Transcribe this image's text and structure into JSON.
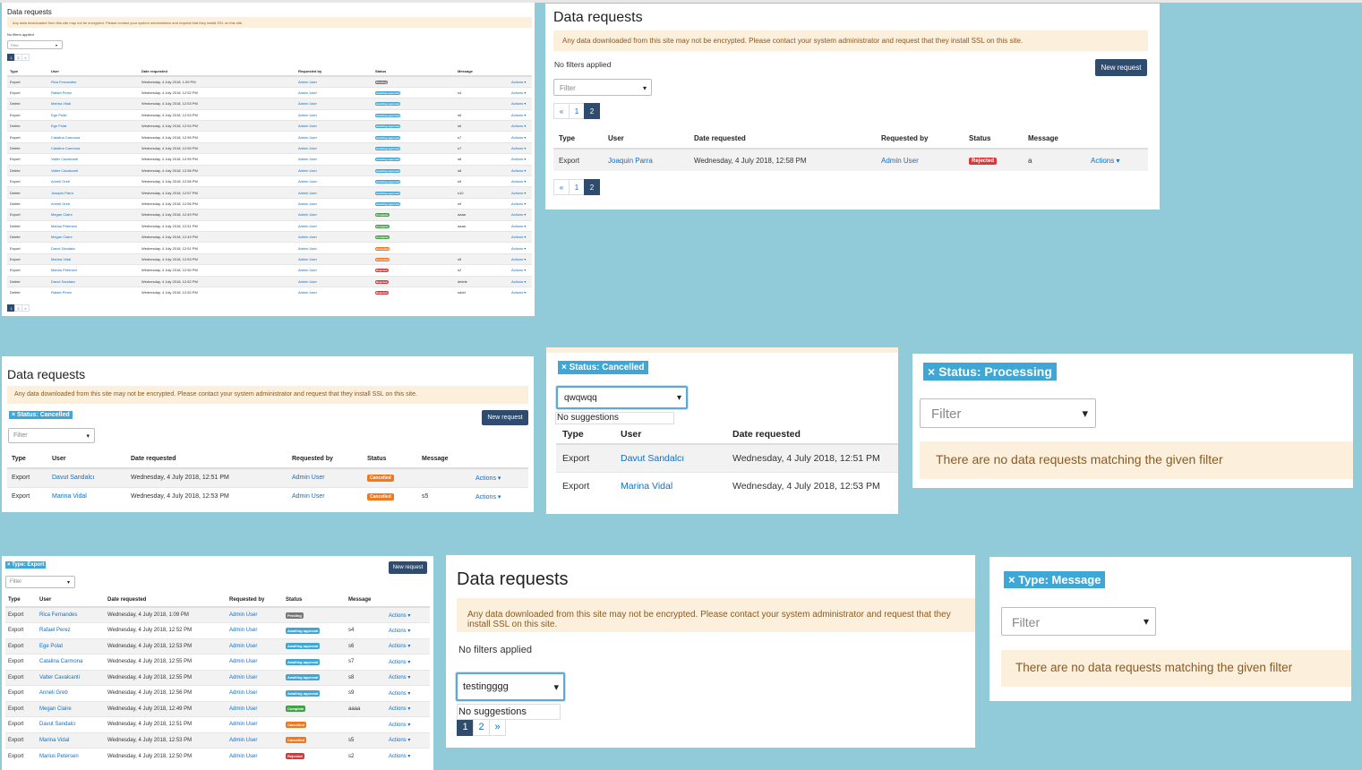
{
  "title": "Data requests",
  "warning": "Any data downloaded from this site may not be encrypted. Please contact your system administrator and request that they install SSL on this site.",
  "no_filters": "No filters applied",
  "new_request": "New request",
  "filter_placeholder": "Filter",
  "arrow": "▾",
  "actions": "Actions ▾",
  "no_suggestions": "No suggestions",
  "no_match": "There are no data requests matching the given filter",
  "headers": {
    "type": "Type",
    "user": "User",
    "date": "Date requested",
    "by": "Requested by",
    "status": "Status",
    "message": "Message"
  },
  "pager": {
    "prev": "«",
    "next": "»",
    "p1": "1",
    "p2": "2"
  },
  "chips": {
    "cancelled": "× Status: Cancelled",
    "processing": "× Status: Processing",
    "export": "× Type: Export",
    "message": "× Type: Message"
  },
  "inputs": {
    "qwqwqq": "qwqwqq",
    "testingggg": "testingggg"
  },
  "colors": {
    "primary": "#2f4b6e",
    "awaiting": "#3fa7d6",
    "complete": "#43a047",
    "cancelled": "#f0781f",
    "rejected": "#d9383a",
    "pending": "#777777",
    "warning_bg": "#fcefdc",
    "backdrop": "#91cbda"
  },
  "rows_full": [
    {
      "type": "Export",
      "user": "Rica Fernandes",
      "date": "Wednesday, 4 July 2018, 1:09 PM",
      "by": "Admin User",
      "status": "Pending",
      "cls": "b-pending",
      "msg": ""
    },
    {
      "type": "Export",
      "user": "Rafael Perez",
      "date": "Wednesday, 4 July 2018, 12:52 PM",
      "by": "Admin User",
      "status": "Awaiting approval",
      "cls": "b-awaiting",
      "msg": "s4"
    },
    {
      "type": "Delete",
      "user": "Marina Vidal",
      "date": "Wednesday, 4 July 2018, 12:53 PM",
      "by": "Admin User",
      "status": "Awaiting approval",
      "cls": "b-awaiting",
      "msg": ""
    },
    {
      "type": "Export",
      "user": "Ege Polat",
      "date": "Wednesday, 4 July 2018, 12:53 PM",
      "by": "Admin User",
      "status": "Awaiting approval",
      "cls": "b-awaiting",
      "msg": "s6"
    },
    {
      "type": "Delete",
      "user": "Ege Polat",
      "date": "Wednesday, 4 July 2018, 12:54 PM",
      "by": "Admin User",
      "status": "Awaiting approval",
      "cls": "b-awaiting",
      "msg": "s6"
    },
    {
      "type": "Export",
      "user": "Catalina Carmona",
      "date": "Wednesday, 4 July 2018, 12:55 PM",
      "by": "Admin User",
      "status": "Awaiting approval",
      "cls": "b-awaiting",
      "msg": "s7"
    },
    {
      "type": "Delete",
      "user": "Catalina Carmona",
      "date": "Wednesday, 4 July 2018, 12:55 PM",
      "by": "Admin User",
      "status": "Awaiting approval",
      "cls": "b-awaiting",
      "msg": "s7"
    },
    {
      "type": "Export",
      "user": "Valter Cavalcanti",
      "date": "Wednesday, 4 July 2018, 12:55 PM",
      "by": "Admin User",
      "status": "Awaiting approval",
      "cls": "b-awaiting",
      "msg": "s8"
    },
    {
      "type": "Delete",
      "user": "Valter Cavalcanti",
      "date": "Wednesday, 4 July 2018, 12:56 PM",
      "by": "Admin User",
      "status": "Awaiting approval",
      "cls": "b-awaiting",
      "msg": "s8"
    },
    {
      "type": "Export",
      "user": "Anneli Greb",
      "date": "Wednesday, 4 July 2018, 12:56 PM",
      "by": "Admin User",
      "status": "Awaiting approval",
      "cls": "b-awaiting",
      "msg": "s9"
    },
    {
      "type": "Delete",
      "user": "Joaquin Parra",
      "date": "Wednesday, 4 July 2018, 12:57 PM",
      "by": "Admin User",
      "status": "Awaiting approval",
      "cls": "b-awaiting",
      "msg": "s10"
    },
    {
      "type": "Delete",
      "user": "Anneli Greb",
      "date": "Wednesday, 4 July 2018, 12:56 PM",
      "by": "Admin User",
      "status": "Awaiting approval",
      "cls": "b-awaiting",
      "msg": "s9"
    },
    {
      "type": "Export",
      "user": "Megan Claire",
      "date": "Wednesday, 4 July 2018, 12:49 PM",
      "by": "Admin User",
      "status": "Complete",
      "cls": "b-complete",
      "msg": "aaaa"
    },
    {
      "type": "Delete",
      "user": "Marius Petersen",
      "date": "Wednesday, 4 July 2018, 12:51 PM",
      "by": "Admin User",
      "status": "Complete",
      "cls": "b-complete",
      "msg": "aaaa"
    },
    {
      "type": "Delete",
      "user": "Megan Claire",
      "date": "Wednesday, 4 July 2018, 12:49 PM",
      "by": "Admin User",
      "status": "Complete",
      "cls": "b-complete",
      "msg": ""
    },
    {
      "type": "Export",
      "user": "Davut Sandalcı",
      "date": "Wednesday, 4 July 2018, 12:51 PM",
      "by": "Admin User",
      "status": "Cancelled",
      "cls": "b-cancelled",
      "msg": ""
    },
    {
      "type": "Export",
      "user": "Marina Vidal",
      "date": "Wednesday, 4 July 2018, 12:53 PM",
      "by": "Admin User",
      "status": "Cancelled",
      "cls": "b-cancelled",
      "msg": "s5"
    },
    {
      "type": "Export",
      "user": "Marius Petersen",
      "date": "Wednesday, 4 July 2018, 12:50 PM",
      "by": "Admin User",
      "status": "Rejected",
      "cls": "b-rejected",
      "msg": "s2"
    },
    {
      "type": "Delete",
      "user": "Davut Sandalcı",
      "date": "Wednesday, 4 July 2018, 12:52 PM",
      "by": "Admin User",
      "status": "Rejected",
      "cls": "b-rejected",
      "msg": "delete"
    },
    {
      "type": "Delete",
      "user": "Rafael Perez",
      "date": "Wednesday, 4 July 2018, 12:52 PM",
      "by": "Admin User",
      "status": "Rejected",
      "cls": "b-rejected",
      "msg": "sddd"
    }
  ],
  "rows_page2": [
    {
      "type": "Export",
      "user": "Joaquin Parra",
      "date": "Wednesday, 4 July 2018, 12:58 PM",
      "by": "Admin User",
      "status": "Rejected",
      "cls": "b-rejected",
      "msg": "a"
    }
  ],
  "rows_cancelled": [
    {
      "type": "Export",
      "user": "Davut Sandalcı",
      "date": "Wednesday, 4 July 2018, 12:51 PM",
      "by": "Admin User",
      "status": "Cancelled",
      "cls": "b-cancelled",
      "msg": ""
    },
    {
      "type": "Export",
      "user": "Marina Vidal",
      "date": "Wednesday, 4 July 2018, 12:53 PM",
      "by": "Admin User",
      "status": "Cancelled",
      "cls": "b-cancelled",
      "msg": "s5"
    }
  ],
  "rows_export": [
    {
      "type": "Export",
      "user": "Rica Fernandes",
      "date": "Wednesday, 4 July 2018, 1:09 PM",
      "by": "Admin User",
      "status": "Pending",
      "cls": "b-pending",
      "msg": ""
    },
    {
      "type": "Export",
      "user": "Rafael Perez",
      "date": "Wednesday, 4 July 2018, 12:52 PM",
      "by": "Admin User",
      "status": "Awaiting approval",
      "cls": "b-awaiting",
      "msg": "s4"
    },
    {
      "type": "Export",
      "user": "Ege Polat",
      "date": "Wednesday, 4 July 2018, 12:53 PM",
      "by": "Admin User",
      "status": "Awaiting approval",
      "cls": "b-awaiting",
      "msg": "s6"
    },
    {
      "type": "Export",
      "user": "Catalina Carmona",
      "date": "Wednesday, 4 July 2018, 12:55 PM",
      "by": "Admin User",
      "status": "Awaiting approval",
      "cls": "b-awaiting",
      "msg": "s7"
    },
    {
      "type": "Export",
      "user": "Valter Cavalcanti",
      "date": "Wednesday, 4 July 2018, 12:55 PM",
      "by": "Admin User",
      "status": "Awaiting approval",
      "cls": "b-awaiting",
      "msg": "s8"
    },
    {
      "type": "Export",
      "user": "Anneli Greb",
      "date": "Wednesday, 4 July 2018, 12:56 PM",
      "by": "Admin User",
      "status": "Awaiting approval",
      "cls": "b-awaiting",
      "msg": "s9"
    },
    {
      "type": "Export",
      "user": "Megan Claire",
      "date": "Wednesday, 4 July 2018, 12:49 PM",
      "by": "Admin User",
      "status": "Complete",
      "cls": "b-complete",
      "msg": "aaaa"
    },
    {
      "type": "Export",
      "user": "Davut Sandalcı",
      "date": "Wednesday, 4 July 2018, 12:51 PM",
      "by": "Admin User",
      "status": "Cancelled",
      "cls": "b-cancelled",
      "msg": ""
    },
    {
      "type": "Export",
      "user": "Marina Vidal",
      "date": "Wednesday, 4 July 2018, 12:53 PM",
      "by": "Admin User",
      "status": "Cancelled",
      "cls": "b-cancelled",
      "msg": "s5"
    },
    {
      "type": "Export",
      "user": "Marius Petersen",
      "date": "Wednesday, 4 July 2018, 12:50 PM",
      "by": "Admin User",
      "status": "Rejected",
      "cls": "b-rejected",
      "msg": "s2"
    }
  ]
}
